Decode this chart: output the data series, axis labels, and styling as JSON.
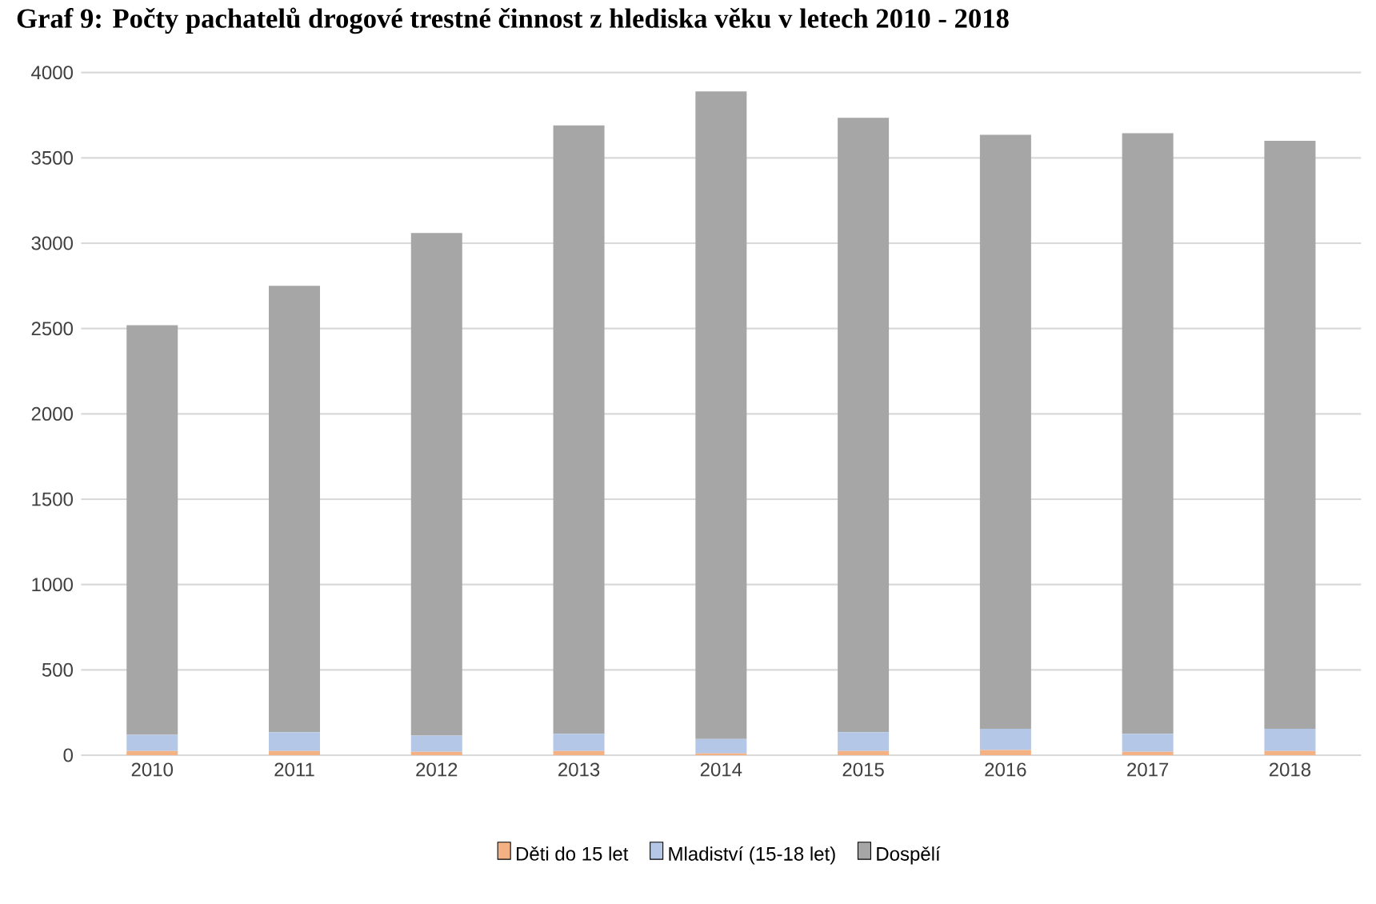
{
  "chart_data": {
    "type": "bar",
    "stacked": true,
    "title": "Graf 9: Počty pachatelů drogové trestné činnost z hlediska věku v letech 2010 - 2018",
    "categories": [
      "2010",
      "2011",
      "2012",
      "2013",
      "2014",
      "2015",
      "2016",
      "2017",
      "2018"
    ],
    "series": [
      {
        "name": "Děti do 15 let",
        "color": "#f4b183",
        "values": [
          25,
          25,
          20,
          25,
          10,
          25,
          30,
          20,
          25
        ]
      },
      {
        "name": "Mladiství (15-18 let)",
        "color": "#b4c7e7",
        "values": [
          95,
          110,
          95,
          100,
          85,
          110,
          125,
          105,
          130
        ]
      },
      {
        "name": "Dospělí",
        "color": "#a6a6a6",
        "values": [
          2400,
          2615,
          2945,
          3565,
          3795,
          3600,
          3480,
          3520,
          3445
        ]
      }
    ],
    "ylim": [
      0,
      4000
    ],
    "yticks": [
      0,
      500,
      1000,
      1500,
      2000,
      2500,
      3000,
      3500,
      4000
    ],
    "grid": "y",
    "legend": "bottom"
  }
}
